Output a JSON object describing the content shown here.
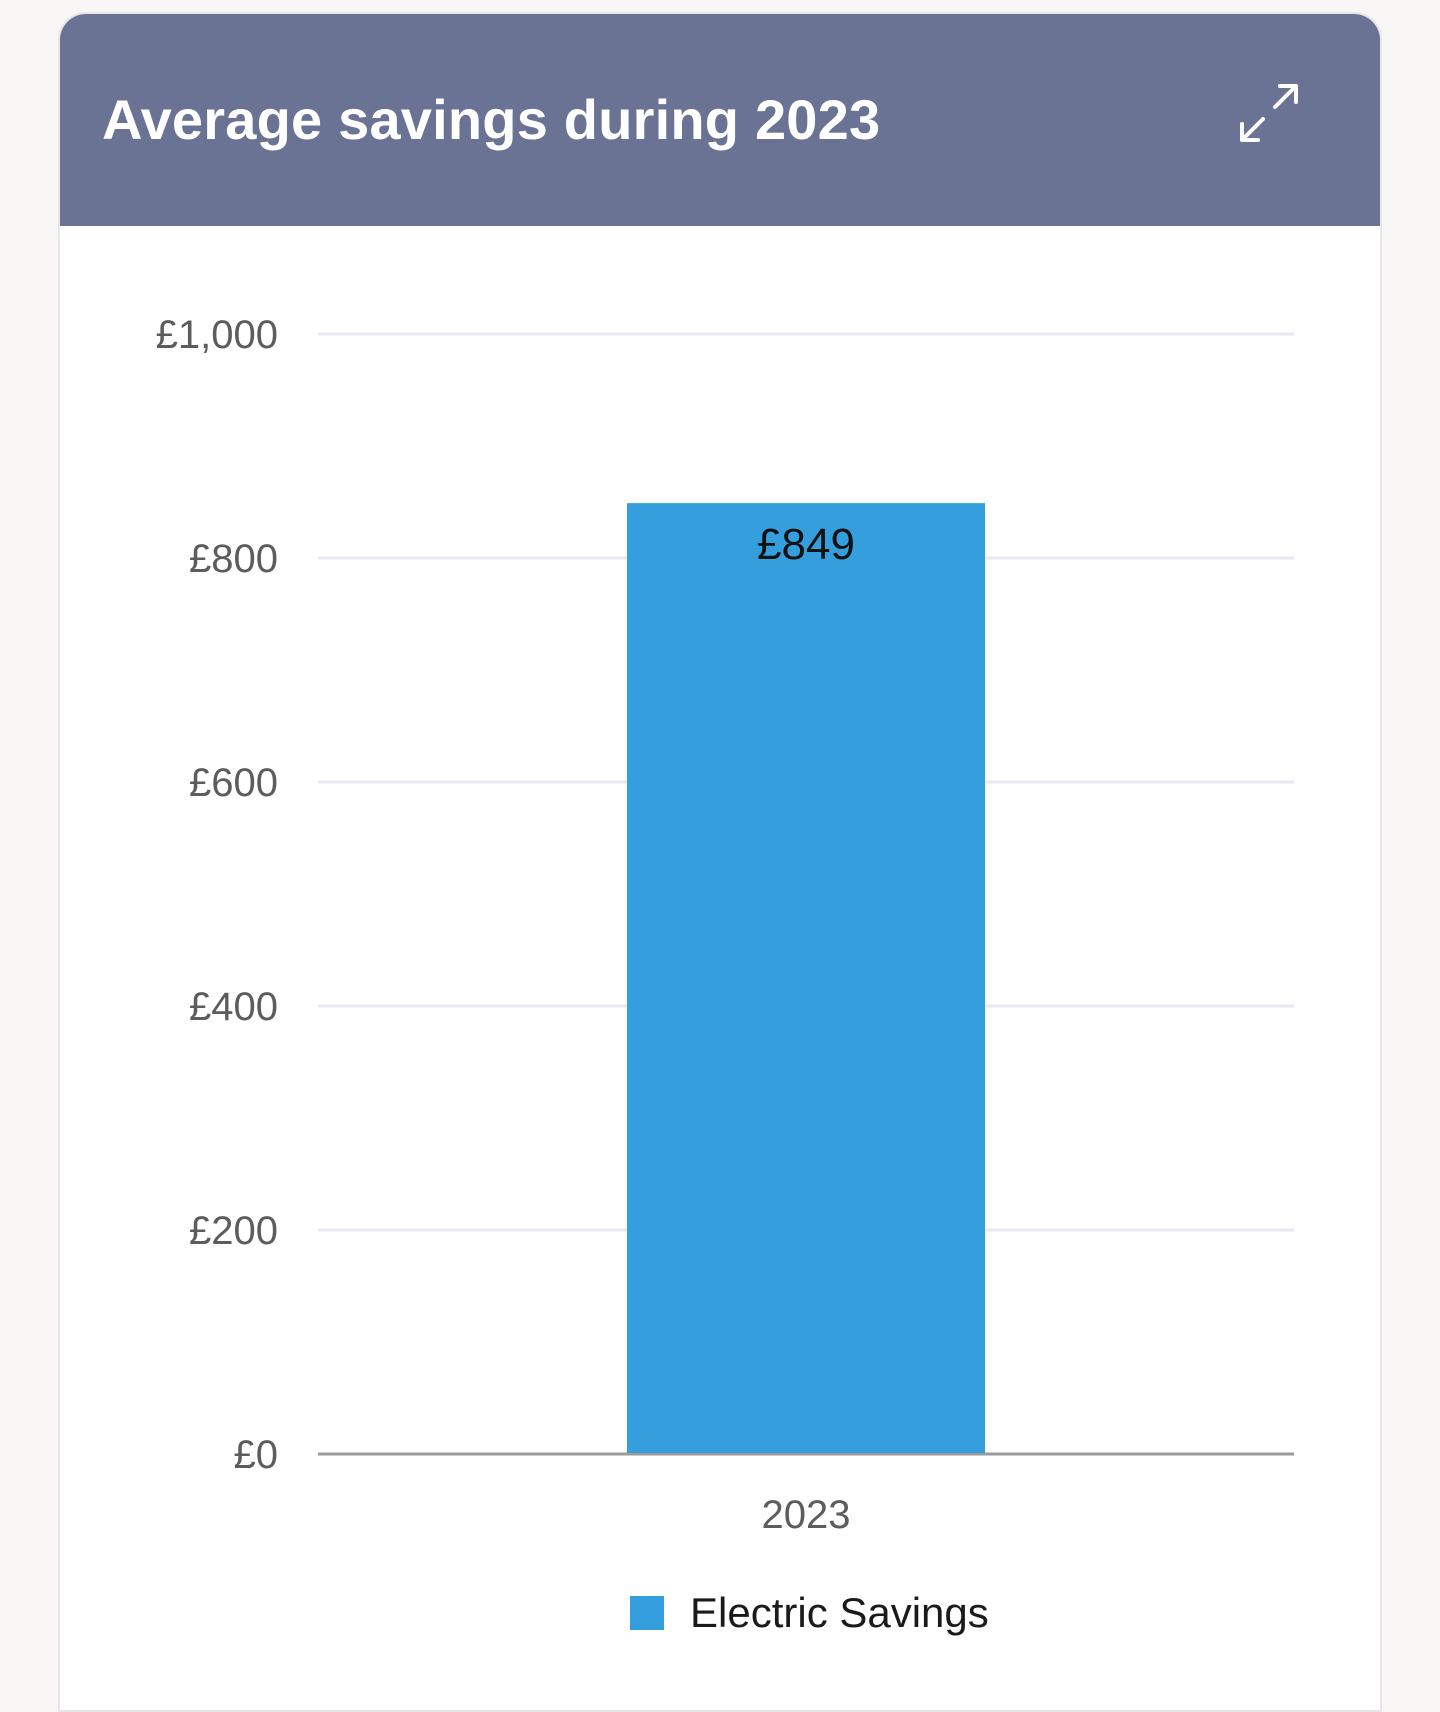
{
  "card": {
    "title": "Average savings during 2023",
    "expand_icon": "expand-arrows-icon"
  },
  "colors": {
    "header_bg": "#6a7393",
    "bar": "#349fdc",
    "grid": "#e8e8ee",
    "baseline": "#9a9a9a"
  },
  "chart_data": {
    "type": "bar",
    "categories": [
      "2023"
    ],
    "series": [
      {
        "name": "Electric Savings",
        "values": [
          849
        ],
        "value_labels": [
          "£849"
        ]
      }
    ],
    "ylim": [
      0,
      1000
    ],
    "yticks": [
      0,
      200,
      400,
      600,
      800,
      1000
    ],
    "ytick_labels": [
      "£0",
      "£200",
      "£400",
      "£600",
      "£800",
      "£1,000"
    ],
    "grid": true,
    "legend_position": "bottom"
  }
}
